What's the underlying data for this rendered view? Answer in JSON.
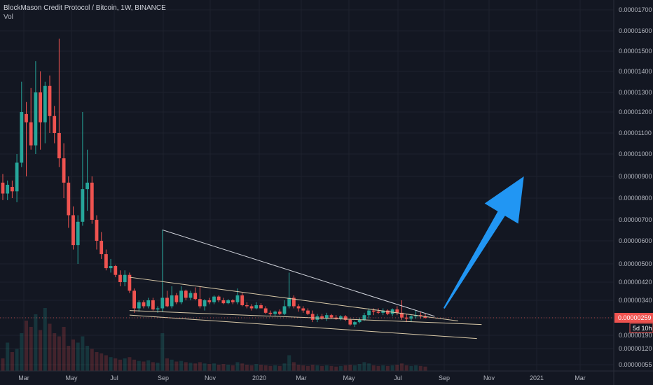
{
  "header": {
    "symbol_line": "BlockMason Credit Protocol / Bitcoin, 1W, BINANCE",
    "volume_label": "Vol"
  },
  "colors": {
    "background": "#131722",
    "grid": "#1e222d",
    "up_candle": "#26a69a",
    "down_candle": "#ef5350",
    "trendline": "#d1d4dc",
    "channel_line": "#d9c9a8",
    "arrow": "#2196f3",
    "axis_text": "#b2b5be",
    "price_tag": "#ef5350",
    "countdown_tag": "#131722"
  },
  "chart_data": {
    "type": "candlestick",
    "title": "BlockMason Credit Protocol / Bitcoin, 1W, BINANCE",
    "price_scale": "logarithmic",
    "y_tick_labels": [
      "0.00001700",
      "0.00001600",
      "0.00001500",
      "0.00001400",
      "0.00001300",
      "0.00001200",
      "0.00001100",
      "0.00001000",
      "0.00000900",
      "0.00000800",
      "0.00000700",
      "0.00000600",
      "0.00000500",
      "0.00000420",
      "0.00000340",
      "0.00000259",
      "0.00000190",
      "0.00000120",
      "0.00000055"
    ],
    "x_tick_labels": [
      "Mar",
      "May",
      "Jul",
      "Sep",
      "Nov",
      "2020",
      "Mar",
      "May",
      "Jul",
      "Sep",
      "Nov",
      "2021",
      "Mar"
    ],
    "current_price_label": "0.00000259",
    "countdown_label": "5d 10h",
    "grid": true,
    "candles": [
      {
        "o": 870,
        "h": 910,
        "l": 790,
        "c": 820
      },
      {
        "o": 820,
        "h": 880,
        "l": 790,
        "c": 860
      },
      {
        "o": 850,
        "h": 880,
        "l": 800,
        "c": 830
      },
      {
        "o": 830,
        "h": 1000,
        "l": 780,
        "c": 960
      },
      {
        "o": 960,
        "h": 1350,
        "l": 940,
        "c": 1200
      },
      {
        "o": 1190,
        "h": 1250,
        "l": 900,
        "c": 1150
      },
      {
        "o": 1150,
        "h": 1320,
        "l": 1020,
        "c": 1040
      },
      {
        "o": 1040,
        "h": 1450,
        "l": 1000,
        "c": 1300
      },
      {
        "o": 1300,
        "h": 1400,
        "l": 1020,
        "c": 1150
      },
      {
        "o": 1150,
        "h": 1350,
        "l": 1050,
        "c": 1330
      },
      {
        "o": 1330,
        "h": 1380,
        "l": 1100,
        "c": 1180
      },
      {
        "o": 1180,
        "h": 1230,
        "l": 1050,
        "c": 1100
      },
      {
        "o": 1100,
        "h": 1560,
        "l": 940,
        "c": 980
      },
      {
        "o": 980,
        "h": 1050,
        "l": 800,
        "c": 870
      },
      {
        "o": 870,
        "h": 900,
        "l": 660,
        "c": 720
      },
      {
        "o": 720,
        "h": 760,
        "l": 560,
        "c": 580
      },
      {
        "o": 580,
        "h": 720,
        "l": 500,
        "c": 690
      },
      {
        "o": 690,
        "h": 1200,
        "l": 670,
        "c": 840
      },
      {
        "o": 840,
        "h": 1020,
        "l": 740,
        "c": 870
      },
      {
        "o": 870,
        "h": 900,
        "l": 680,
        "c": 700
      },
      {
        "o": 700,
        "h": 720,
        "l": 560,
        "c": 600
      },
      {
        "o": 600,
        "h": 640,
        "l": 520,
        "c": 540
      },
      {
        "o": 540,
        "h": 560,
        "l": 470,
        "c": 480
      },
      {
        "o": 480,
        "h": 520,
        "l": 460,
        "c": 490
      },
      {
        "o": 490,
        "h": 495,
        "l": 440,
        "c": 450
      },
      {
        "o": 450,
        "h": 470,
        "l": 400,
        "c": 420
      },
      {
        "o": 420,
        "h": 470,
        "l": 400,
        "c": 450
      },
      {
        "o": 450,
        "h": 460,
        "l": 370,
        "c": 380
      },
      {
        "o": 380,
        "h": 390,
        "l": 280,
        "c": 300
      },
      {
        "o": 300,
        "h": 340,
        "l": 285,
        "c": 330
      },
      {
        "o": 330,
        "h": 340,
        "l": 300,
        "c": 310
      },
      {
        "o": 310,
        "h": 350,
        "l": 300,
        "c": 340
      },
      {
        "o": 340,
        "h": 350,
        "l": 290,
        "c": 295
      },
      {
        "o": 295,
        "h": 310,
        "l": 280,
        "c": 300
      },
      {
        "o": 300,
        "h": 650,
        "l": 285,
        "c": 350
      },
      {
        "o": 350,
        "h": 380,
        "l": 305,
        "c": 310
      },
      {
        "o": 310,
        "h": 400,
        "l": 300,
        "c": 360
      },
      {
        "o": 360,
        "h": 370,
        "l": 320,
        "c": 330
      },
      {
        "o": 330,
        "h": 400,
        "l": 320,
        "c": 380
      },
      {
        "o": 380,
        "h": 385,
        "l": 340,
        "c": 350
      },
      {
        "o": 350,
        "h": 380,
        "l": 340,
        "c": 370
      },
      {
        "o": 370,
        "h": 395,
        "l": 340,
        "c": 345
      },
      {
        "o": 345,
        "h": 400,
        "l": 300,
        "c": 310
      },
      {
        "o": 310,
        "h": 345,
        "l": 290,
        "c": 340
      },
      {
        "o": 340,
        "h": 350,
        "l": 320,
        "c": 330
      },
      {
        "o": 330,
        "h": 360,
        "l": 320,
        "c": 355
      },
      {
        "o": 355,
        "h": 360,
        "l": 330,
        "c": 340
      },
      {
        "o": 340,
        "h": 350,
        "l": 320,
        "c": 325
      },
      {
        "o": 325,
        "h": 345,
        "l": 320,
        "c": 340
      },
      {
        "o": 340,
        "h": 345,
        "l": 320,
        "c": 330
      },
      {
        "o": 330,
        "h": 390,
        "l": 320,
        "c": 360
      },
      {
        "o": 360,
        "h": 370,
        "l": 310,
        "c": 315
      },
      {
        "o": 315,
        "h": 330,
        "l": 300,
        "c": 310
      },
      {
        "o": 310,
        "h": 320,
        "l": 290,
        "c": 300
      },
      {
        "o": 300,
        "h": 330,
        "l": 295,
        "c": 315
      },
      {
        "o": 315,
        "h": 325,
        "l": 300,
        "c": 300
      },
      {
        "o": 300,
        "h": 310,
        "l": 275,
        "c": 280
      },
      {
        "o": 280,
        "h": 290,
        "l": 265,
        "c": 275
      },
      {
        "o": 275,
        "h": 290,
        "l": 265,
        "c": 285
      },
      {
        "o": 285,
        "h": 295,
        "l": 270,
        "c": 275
      },
      {
        "o": 275,
        "h": 340,
        "l": 270,
        "c": 310
      },
      {
        "o": 310,
        "h": 460,
        "l": 300,
        "c": 350
      },
      {
        "o": 350,
        "h": 360,
        "l": 300,
        "c": 310
      },
      {
        "o": 310,
        "h": 320,
        "l": 285,
        "c": 300
      },
      {
        "o": 300,
        "h": 310,
        "l": 280,
        "c": 290
      },
      {
        "o": 290,
        "h": 300,
        "l": 270,
        "c": 275
      },
      {
        "o": 275,
        "h": 290,
        "l": 240,
        "c": 250
      },
      {
        "o": 250,
        "h": 275,
        "l": 240,
        "c": 265
      },
      {
        "o": 265,
        "h": 275,
        "l": 250,
        "c": 255
      },
      {
        "o": 255,
        "h": 280,
        "l": 245,
        "c": 270
      },
      {
        "o": 270,
        "h": 275,
        "l": 255,
        "c": 260
      },
      {
        "o": 260,
        "h": 270,
        "l": 250,
        "c": 255
      },
      {
        "o": 255,
        "h": 270,
        "l": 248,
        "c": 265
      },
      {
        "o": 265,
        "h": 270,
        "l": 245,
        "c": 250
      },
      {
        "o": 250,
        "h": 255,
        "l": 225,
        "c": 230
      },
      {
        "o": 230,
        "h": 245,
        "l": 220,
        "c": 240
      },
      {
        "o": 240,
        "h": 260,
        "l": 235,
        "c": 250
      },
      {
        "o": 250,
        "h": 280,
        "l": 245,
        "c": 270
      },
      {
        "o": 270,
        "h": 300,
        "l": 255,
        "c": 290
      },
      {
        "o": 290,
        "h": 300,
        "l": 270,
        "c": 285
      },
      {
        "o": 285,
        "h": 300,
        "l": 275,
        "c": 280
      },
      {
        "o": 280,
        "h": 300,
        "l": 270,
        "c": 290
      },
      {
        "o": 290,
        "h": 295,
        "l": 270,
        "c": 275
      },
      {
        "o": 275,
        "h": 300,
        "l": 265,
        "c": 295
      },
      {
        "o": 295,
        "h": 310,
        "l": 270,
        "c": 280
      },
      {
        "o": 280,
        "h": 340,
        "l": 250,
        "c": 260
      },
      {
        "o": 260,
        "h": 275,
        "l": 240,
        "c": 255
      },
      {
        "o": 255,
        "h": 270,
        "l": 240,
        "c": 265
      },
      {
        "o": 265,
        "h": 290,
        "l": 255,
        "c": 270
      },
      {
        "o": 270,
        "h": 285,
        "l": 255,
        "c": 265
      },
      {
        "o": 265,
        "h": 275,
        "l": 255,
        "c": 259
      }
    ],
    "volumes": [
      20,
      45,
      30,
      35,
      60,
      80,
      70,
      90,
      65,
      100,
      75,
      60,
      55,
      70,
      40,
      50,
      45,
      55,
      40,
      35,
      30,
      28,
      25,
      22,
      20,
      18,
      20,
      22,
      18,
      16,
      15,
      17,
      14,
      13,
      60,
      20,
      18,
      15,
      16,
      14,
      13,
      12,
      14,
      12,
      11,
      12,
      10,
      11,
      10,
      9,
      14,
      12,
      10,
      9,
      11,
      10,
      9,
      8,
      9,
      8,
      12,
      25,
      14,
      10,
      9,
      8,
      10,
      9,
      8,
      9,
      8,
      7,
      8,
      9,
      10,
      9,
      11,
      14,
      12,
      9,
      8,
      9,
      8,
      9,
      10,
      12,
      9,
      8,
      9,
      8,
      7
    ],
    "annotations": {
      "upper_trendline": [
        {
          "i": 34,
          "price": 650
        },
        {
          "i": 92,
          "price": 265
        }
      ],
      "channel_top": [
        {
          "i": 27,
          "price": 440
        },
        {
          "i": 97,
          "price": 245
        }
      ],
      "channel_mid": [
        {
          "i": 27,
          "price": 290
        },
        {
          "i": 102,
          "price": 230
        }
      ],
      "channel_bottom": [
        {
          "i": 27,
          "price": 270
        },
        {
          "i": 101,
          "price": 170
        }
      ],
      "arrow": {
        "from": {
          "i": 94,
          "price": 300
        },
        "to": {
          "i": 111,
          "price": 900
        },
        "direction": "up"
      }
    },
    "units_note": "price values are in units of 1e-8 BTC"
  }
}
